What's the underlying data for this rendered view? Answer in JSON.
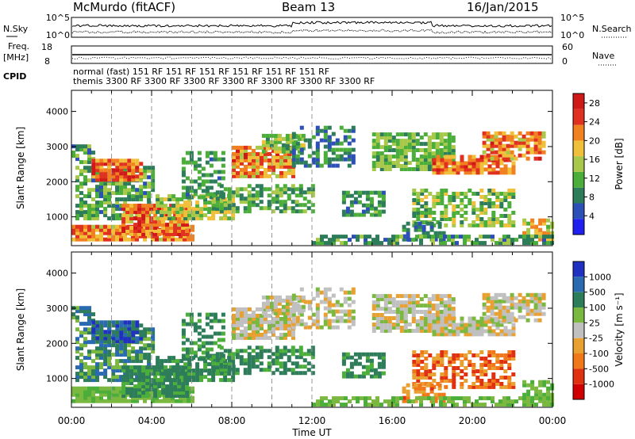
{
  "header": {
    "station": "McMurdo (fitACF)",
    "beam": "Beam 13",
    "date": "16/Jan/2015"
  },
  "top_panels": {
    "nsky_label": "N.Sky",
    "nsky_ticks": [
      "10^5",
      "10^0"
    ],
    "nsearch_label": "N.Search",
    "nsearch_ticks": [
      "10^5",
      "10^0"
    ],
    "freq_label_1": "Freq.",
    "freq_label_2": "[MHz]",
    "freq_ticks": [
      "18",
      "8"
    ],
    "nave_label": "Nave",
    "nave_ticks": [
      "60",
      "0"
    ],
    "cpid_label": "CPID",
    "cpid_lines": [
      "normal  (fast) 151 RF 151 RF 151 RF 151 RF 151 RF 151 RF",
      "themis  3300 RF 3300 RF 3300 RF 3300 RF 3300 RF 3300 RF 3300 RF"
    ]
  },
  "chart_data": [
    {
      "type": "heatmap",
      "title": "",
      "xlabel": "",
      "ylabel": "Slant Range [km]",
      "x_ticks": [
        "00:00",
        "04:00",
        "08:00",
        "12:00",
        "16:00",
        "20:00",
        "00:00"
      ],
      "y_ticks": [
        1000,
        2000,
        3000,
        4000
      ],
      "xlim": [
        0,
        24
      ],
      "ylim": [
        180,
        4600
      ],
      "colorbar_label": "Power [dB]",
      "colorbar_ticks": [
        4,
        8,
        12,
        16,
        20,
        24,
        28
      ],
      "colorbar_colors": [
        "#1f1ff0",
        "#2d4fb8",
        "#2e7d5a",
        "#4cae3a",
        "#a8c84a",
        "#f0c03a",
        "#f08020",
        "#e03020",
        "#d01818"
      ],
      "colorbar_range": [
        0,
        30
      ]
    },
    {
      "type": "heatmap",
      "title": "",
      "xlabel": "Time UT",
      "ylabel": "Slant Range [km]",
      "x_ticks": [
        "00:00",
        "04:00",
        "08:00",
        "12:00",
        "16:00",
        "20:00",
        "00:00"
      ],
      "y_ticks": [
        1000,
        2000,
        3000,
        4000
      ],
      "xlim": [
        0,
        24
      ],
      "ylim": [
        180,
        4600
      ],
      "colorbar_label": "Velocity [m s⁻¹]",
      "colorbar_ticks": [
        "1000",
        "500",
        "100",
        "25",
        "-25",
        "-100",
        "-500",
        "-1000"
      ],
      "colorbar_colors": [
        "#2030c0",
        "#2a6ab0",
        "#2e7d5a",
        "#7ab840",
        "#c0c0c0",
        "#e8a030",
        "#f07818",
        "#e03010",
        "#d00000"
      ]
    }
  ],
  "colors": {
    "grid_dash": "#999999",
    "axis": "#000000"
  }
}
